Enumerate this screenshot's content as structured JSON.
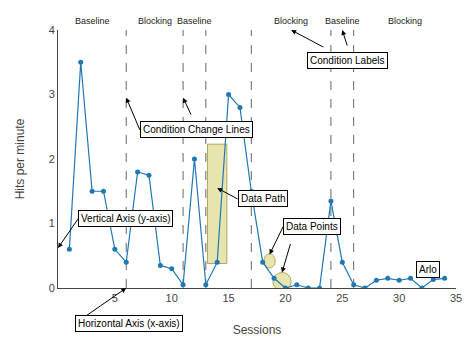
{
  "chart_data": {
    "type": "line",
    "xlabel": "Sessions",
    "ylabel": "Hits per minute",
    "x": [
      1,
      2,
      3,
      4,
      5,
      6,
      7,
      8,
      9,
      10,
      11,
      12,
      13,
      14,
      15,
      16,
      17,
      18,
      19,
      20,
      21,
      22,
      23,
      24,
      25,
      26,
      27,
      28,
      29,
      30,
      31,
      32,
      33,
      34
    ],
    "values": [
      0.6,
      3.5,
      1.5,
      1.5,
      0.6,
      0.4,
      1.8,
      1.75,
      0.35,
      0.3,
      0.05,
      2.0,
      0.05,
      0.4,
      3.0,
      2.8,
      1.5,
      0.4,
      0.15,
      0.0,
      0.05,
      0.0,
      0.0,
      1.35,
      0.4,
      0.05,
      0.0,
      0.12,
      0.15,
      0.12,
      0.15,
      0.0,
      0.13,
      0.15
    ],
    "marker": "circle",
    "xlim": [
      0,
      35
    ],
    "ylim": [
      0,
      4
    ],
    "xticks": [
      5,
      10,
      15,
      20,
      25,
      30,
      35
    ],
    "yticks": [
      0,
      1,
      2,
      3,
      4
    ],
    "grid": false,
    "condition_lines": [
      6,
      11,
      13,
      17,
      24,
      26
    ],
    "condition_labels": [
      {
        "text": "Baseline",
        "x": 3.0
      },
      {
        "text": "Blocking",
        "x": 8.5
      },
      {
        "text": "Baseline",
        "x": 12.0
      },
      {
        "text": "Blocking",
        "x": 20.5
      },
      {
        "text": "Baseline",
        "x": 25.0
      },
      {
        "text": "Blocking",
        "x": 30.5
      }
    ],
    "highlight_rect": {
      "x": 13.15,
      "y": 0.38,
      "width": 1.7,
      "height": 1.85,
      "color": "#e8e4b0",
      "edge_color": "#b0a860"
    },
    "highlight_ellipses": [
      {
        "cx": 18.6,
        "cy": 0.42,
        "w": 1.0,
        "h": 0.22,
        "color": "#e8e4b0",
        "edge_color": "#b0a860"
      },
      {
        "cx": 19.7,
        "cy": 0.1,
        "w": 1.6,
        "h": 0.28,
        "color": "#e8e4b0",
        "edge_color": "#b0a860"
      }
    ],
    "annotations": [
      {
        "text": "Condition Change Lines",
        "x": 7.2,
        "y": 2.45,
        "arrows": [
          {
            "x": 6,
            "y": 2.95
          },
          {
            "x": 11,
            "y": 2.95,
            "from": [
              11.8,
              2.65
            ]
          }
        ]
      },
      {
        "text": "Condition Labels",
        "x": 25.5,
        "y": 3.52,
        "arrows": [
          {
            "x": 20.5,
            "y": 4.0,
            "from": [
              23.5,
              3.72
            ]
          },
          {
            "x": 25.0,
            "y": 4.0,
            "from": [
              25.5,
              3.72
            ]
          }
        ]
      },
      {
        "text": "Vertical Axis (y-axis)",
        "x": 1.8,
        "y": 1.08,
        "arrows": [
          {
            "x": 0.0,
            "y": 0.62
          }
        ]
      },
      {
        "text": "Data Path",
        "x": 15.8,
        "y": 1.38,
        "arrows": [
          {
            "x": 14.0,
            "y": 1.55
          }
        ]
      },
      {
        "text": "Data Points",
        "x": 19.8,
        "y": 0.95,
        "arrows": [
          {
            "x": 18.6,
            "y": 0.52
          },
          {
            "x": 19.7,
            "y": 0.24,
            "from": [
              20.5,
              0.72
            ]
          }
        ]
      },
      {
        "text": "Horizontal Axis (x-axis)",
        "x": 1.5,
        "y": -0.55,
        "arrows": [
          {
            "x": 6.0,
            "y": 0.0
          }
        ]
      },
      {
        "text": "Arlo",
        "x": 32.5,
        "y": 0.28
      }
    ]
  }
}
